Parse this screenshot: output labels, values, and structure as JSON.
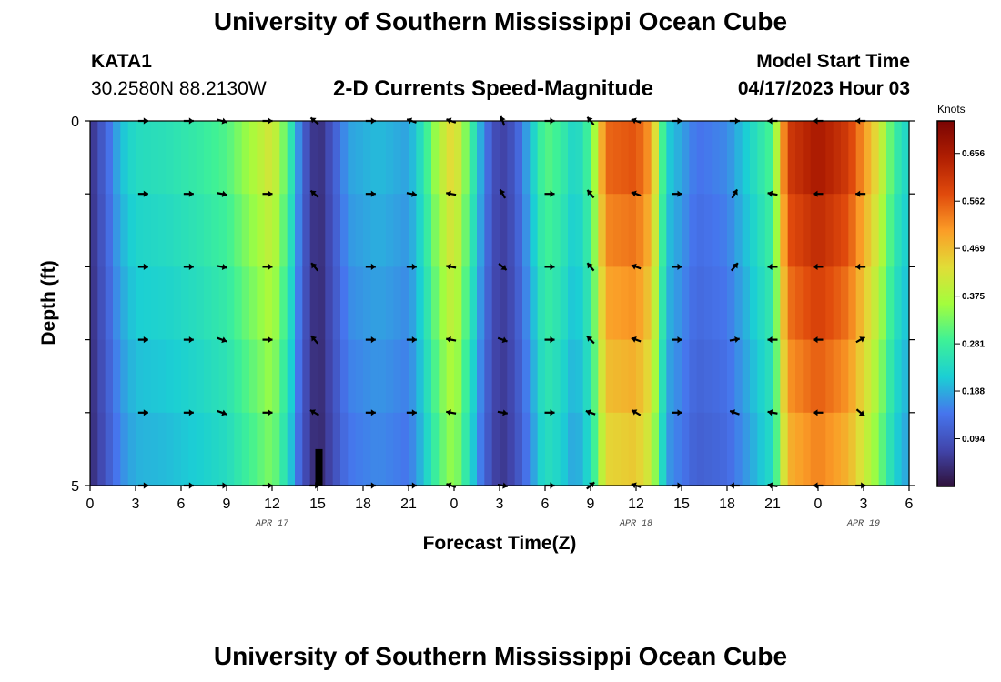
{
  "header": {
    "title": "University of Southern Mississippi Ocean Cube",
    "station": "KATA1",
    "coords": "30.2580N  88.2130W",
    "subtitle": "2-D Currents Speed-Magnitude",
    "model_start_label": "Model Start Time",
    "model_start_value": "04/17/2023 Hour 03"
  },
  "footer": {
    "title": "University of Southern Mississippi Ocean Cube"
  },
  "chart_data": {
    "type": "heatmap",
    "title": "2-D Currents Speed-Magnitude",
    "xlabel": "Forecast Time(Z)",
    "ylabel": "Depth (ft)",
    "x_tick_labels": [
      "0",
      "3",
      "6",
      "9",
      "12",
      "15",
      "18",
      "21",
      "0",
      "3",
      "6",
      "9",
      "12",
      "15",
      "18",
      "21",
      "0",
      "3",
      "6"
    ],
    "x_range_hours": [
      0,
      54
    ],
    "y_tick_labels": [
      "0",
      "5"
    ],
    "y_range_ft": [
      0,
      5
    ],
    "date_labels": [
      {
        "text": "APR 17",
        "hour": 12
      },
      {
        "text": "APR 18",
        "hour": 36
      },
      {
        "text": "APR 19",
        "hour": 51
      }
    ],
    "colorbar": {
      "units": "Knots",
      "min": 0.0,
      "max": 0.72,
      "ticks": [
        "0.094",
        "0.188",
        "0.281",
        "0.375",
        "0.469",
        "0.562",
        "0.656"
      ]
    },
    "speed_by_hour_knots": [
      [
        0,
        0.04
      ],
      [
        1,
        0.12
      ],
      [
        2,
        0.2
      ],
      [
        3,
        0.24
      ],
      [
        5,
        0.25
      ],
      [
        7,
        0.27
      ],
      [
        9,
        0.3
      ],
      [
        10,
        0.34
      ],
      [
        11,
        0.38
      ],
      [
        12,
        0.42
      ],
      [
        13,
        0.3
      ],
      [
        14,
        0.12
      ],
      [
        15,
        0.03
      ],
      [
        16,
        0.1
      ],
      [
        17,
        0.18
      ],
      [
        19,
        0.2
      ],
      [
        21,
        0.18
      ],
      [
        22,
        0.26
      ],
      [
        23,
        0.38
      ],
      [
        24,
        0.45
      ],
      [
        25,
        0.3
      ],
      [
        26,
        0.15
      ],
      [
        27,
        0.06
      ],
      [
        28,
        0.1
      ],
      [
        29,
        0.2
      ],
      [
        30,
        0.31
      ],
      [
        31,
        0.28
      ],
      [
        32,
        0.22
      ],
      [
        33,
        0.3
      ],
      [
        34,
        0.55
      ],
      [
        36,
        0.57
      ],
      [
        37,
        0.5
      ],
      [
        38,
        0.22
      ],
      [
        40,
        0.14
      ],
      [
        42,
        0.16
      ],
      [
        44,
        0.25
      ],
      [
        45,
        0.3
      ],
      [
        46,
        0.6
      ],
      [
        48,
        0.66
      ],
      [
        50,
        0.6
      ],
      [
        52,
        0.42
      ],
      [
        53,
        0.28
      ],
      [
        54,
        0.22
      ]
    ],
    "vectors": {
      "hours": [
        3.5,
        6.5,
        8.7,
        11.7,
        14.8,
        18.5,
        21.2,
        23.8,
        27.2,
        30.3,
        33.0,
        36.0,
        38.7,
        42.5,
        45.0,
        48.0,
        50.8
      ],
      "depths_ft": [
        0,
        1,
        2,
        3,
        4,
        5
      ],
      "directions_deg": [
        [
          0,
          0,
          15,
          0,
          220,
          0,
          200,
          200,
          250,
          0,
          230,
          200,
          0,
          0,
          180,
          180,
          180
        ],
        [
          0,
          0,
          10,
          0,
          220,
          0,
          10,
          190,
          240,
          0,
          230,
          200,
          0,
          300,
          190,
          180,
          180
        ],
        [
          0,
          0,
          10,
          0,
          230,
          0,
          0,
          190,
          40,
          0,
          230,
          200,
          0,
          310,
          180,
          180,
          180
        ],
        [
          0,
          0,
          20,
          0,
          230,
          0,
          0,
          190,
          20,
          0,
          225,
          200,
          0,
          350,
          180,
          180,
          330
        ],
        [
          0,
          0,
          20,
          0,
          210,
          0,
          0,
          190,
          10,
          0,
          200,
          210,
          0,
          200,
          190,
          180,
          40
        ],
        [
          0,
          0,
          0,
          0,
          0,
          0,
          0,
          200,
          10,
          0,
          320,
          200,
          0,
          180,
          190,
          180,
          0
        ]
      ]
    }
  }
}
